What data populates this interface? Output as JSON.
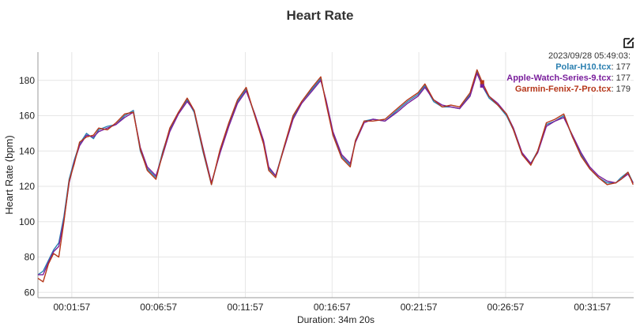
{
  "chart_data": {
    "type": "line",
    "title": "Heart Rate",
    "ylabel": "Heart Rate (bpm)",
    "xlabel": "Duration: 34m 20s",
    "xlim_min": [
      0,
      34.33
    ],
    "ylim": [
      57,
      196
    ],
    "yticks": [
      60,
      80,
      100,
      120,
      140,
      160,
      180
    ],
    "xticks": [
      {
        "label": "00:01:57",
        "min": 1.95
      },
      {
        "label": "00:06:57",
        "min": 6.95
      },
      {
        "label": "00:11:57",
        "min": 11.95
      },
      {
        "label": "00:16:57",
        "min": 16.95
      },
      {
        "label": "00:21:57",
        "min": 21.95
      },
      {
        "label": "00:26:57",
        "min": 26.95
      },
      {
        "label": "00:31:57",
        "min": 31.95
      }
    ],
    "grid": true,
    "tooltip": {
      "timestamp": "2023/09/28 05:49:03:",
      "x_min": 25.6,
      "entries": [
        {
          "name": "Polar-H10.tcx",
          "value": 177
        },
        {
          "name": "Apple-Watch-Series-9.tcx",
          "value": 177
        },
        {
          "name": "Garmin-Fenix-7-Pro.tcx",
          "value": 179
        }
      ]
    },
    "series": [
      {
        "name": "Polar-H10.tcx",
        "color": "#2a7fb0",
        "x": [
          0,
          0.3,
          0.6,
          0.9,
          1.2,
          1.5,
          1.8,
          2.1,
          2.4,
          2.8,
          3.2,
          3.5,
          4.0,
          4.5,
          5.0,
          5.5,
          5.9,
          6.3,
          6.8,
          7.2,
          7.6,
          8.1,
          8.6,
          9.0,
          9.5,
          10.0,
          10.5,
          11.0,
          11.5,
          12.0,
          12.5,
          13.0,
          13.3,
          13.7,
          14.2,
          14.7,
          15.2,
          15.8,
          16.3,
          16.6,
          17.0,
          17.5,
          18.0,
          18.3,
          18.8,
          19.3,
          20.0,
          20.7,
          21.3,
          21.9,
          22.3,
          22.8,
          23.3,
          23.8,
          24.3,
          24.9,
          25.3,
          25.6,
          26.0,
          26.5,
          27.0,
          27.4,
          27.9,
          28.4,
          28.8,
          29.3,
          29.8,
          30.3,
          30.8,
          31.3,
          31.8,
          32.3,
          32.8,
          33.3,
          33.6,
          34.0,
          34.3
        ],
        "values": [
          70,
          72,
          78,
          84,
          88,
          103,
          124,
          135,
          144,
          150,
          147,
          152,
          154,
          155,
          160,
          163,
          140,
          130,
          125,
          140,
          152,
          162,
          169,
          162,
          140,
          121,
          140,
          155,
          168,
          175,
          160,
          145,
          130,
          126,
          143,
          159,
          168,
          175,
          181,
          168,
          150,
          137,
          132,
          146,
          157,
          158,
          157,
          163,
          168,
          172,
          177,
          168,
          165,
          165,
          164,
          172,
          185,
          177,
          170,
          166,
          160,
          152,
          138,
          133,
          140,
          155,
          157,
          160,
          148,
          138,
          130,
          125,
          122,
          122,
          125,
          128,
          122
        ]
      },
      {
        "name": "Apple-Watch-Series-9.tcx",
        "color": "#7a1f9c",
        "x": [
          0,
          0.3,
          0.6,
          0.9,
          1.2,
          1.5,
          1.8,
          2.1,
          2.4,
          2.8,
          3.2,
          3.5,
          4.0,
          4.5,
          5.0,
          5.5,
          5.9,
          6.3,
          6.8,
          7.2,
          7.6,
          8.1,
          8.6,
          9.0,
          9.5,
          10.0,
          10.5,
          11.0,
          11.5,
          12.0,
          12.5,
          13.0,
          13.3,
          13.7,
          14.2,
          14.7,
          15.2,
          15.8,
          16.3,
          16.6,
          17.0,
          17.5,
          18.0,
          18.3,
          18.8,
          19.3,
          20.0,
          20.7,
          21.3,
          21.9,
          22.3,
          22.8,
          23.3,
          23.8,
          24.3,
          24.9,
          25.3,
          25.6,
          26.0,
          26.5,
          27.0,
          27.4,
          27.9,
          28.4,
          28.8,
          29.3,
          29.8,
          30.3,
          30.8,
          31.3,
          31.8,
          32.3,
          32.8,
          33.3,
          33.6,
          34.0,
          34.3
        ],
        "values": [
          70,
          70,
          77,
          83,
          86,
          101,
          122,
          134,
          143,
          149,
          148,
          151,
          153,
          155,
          159,
          162,
          142,
          131,
          126,
          138,
          151,
          161,
          168,
          163,
          142,
          122,
          139,
          154,
          167,
          174,
          161,
          146,
          131,
          126,
          142,
          158,
          167,
          174,
          180,
          169,
          151,
          138,
          133,
          145,
          156,
          158,
          157,
          162,
          167,
          171,
          176,
          169,
          166,
          165,
          164,
          171,
          184,
          177,
          171,
          167,
          161,
          153,
          139,
          133,
          139,
          154,
          157,
          159,
          149,
          139,
          131,
          126,
          123,
          122,
          124,
          127,
          122
        ]
      },
      {
        "name": "Garmin-Fenix-7-Pro.tcx",
        "color": "#b5371a",
        "x": [
          0,
          0.3,
          0.6,
          0.9,
          1.2,
          1.5,
          1.8,
          2.1,
          2.4,
          2.8,
          3.2,
          3.5,
          4.0,
          4.5,
          5.0,
          5.5,
          5.9,
          6.3,
          6.8,
          7.2,
          7.6,
          8.1,
          8.6,
          9.0,
          9.5,
          10.0,
          10.5,
          11.0,
          11.5,
          12.0,
          12.5,
          13.0,
          13.3,
          13.7,
          14.2,
          14.7,
          15.2,
          15.8,
          16.3,
          16.6,
          17.0,
          17.5,
          18.0,
          18.3,
          18.8,
          19.3,
          20.0,
          20.7,
          21.3,
          21.9,
          22.3,
          22.8,
          23.3,
          23.8,
          24.3,
          24.9,
          25.3,
          25.6,
          26.0,
          26.5,
          27.0,
          27.4,
          27.9,
          28.4,
          28.8,
          29.3,
          29.8,
          30.3,
          30.8,
          31.3,
          31.8,
          32.3,
          32.8,
          33.3,
          33.6,
          34.0,
          34.3
        ],
        "values": [
          68,
          66,
          76,
          82,
          80,
          100,
          123,
          133,
          145,
          148,
          149,
          153,
          152,
          156,
          161,
          162,
          141,
          129,
          124,
          139,
          153,
          162,
          170,
          163,
          141,
          121,
          141,
          156,
          169,
          176,
          160,
          144,
          129,
          125,
          143,
          160,
          168,
          176,
          182,
          167,
          149,
          136,
          131,
          146,
          157,
          157,
          158,
          164,
          169,
          173,
          178,
          169,
          165,
          166,
          165,
          173,
          186,
          179,
          171,
          166,
          161,
          152,
          138,
          132,
          140,
          156,
          158,
          161,
          148,
          137,
          130,
          125,
          121,
          122,
          124,
          128,
          121
        ]
      }
    ]
  }
}
